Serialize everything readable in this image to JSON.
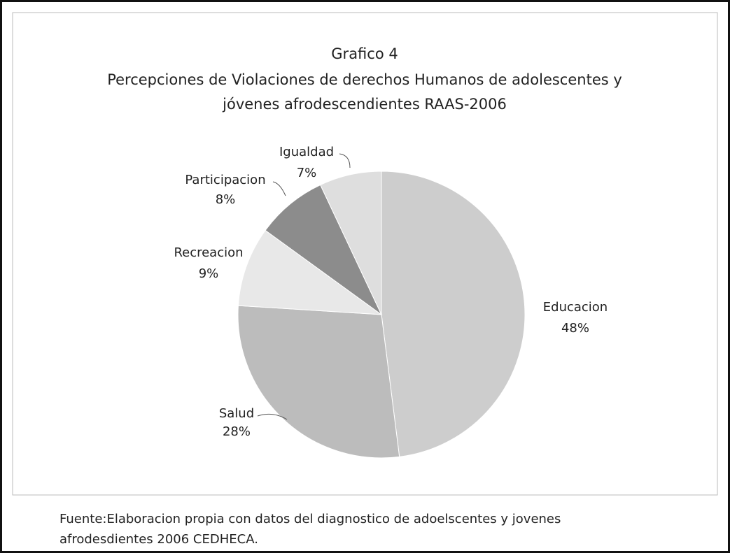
{
  "chart_data": {
    "type": "pie",
    "title": "Grafico 4",
    "subtitle": [
      "Percepciones de Violaciones de derechos Humanos  de adolescentes y",
      "jóvenes afrodescendientes  RAAS-2006"
    ],
    "categories": [
      "Educacion",
      "Salud",
      "Recreacion",
      "Participacion",
      "Igualdad"
    ],
    "values": [
      48,
      28,
      9,
      8,
      7
    ],
    "value_labels": [
      "48%",
      "28%",
      "9%",
      "8%",
      "7%"
    ],
    "colors": [
      "#cdcdcd",
      "#bcbcbc",
      "#e8e8e8",
      "#8c8c8c",
      "#dedede"
    ],
    "note": [
      "Fuente:Elaboracion propia con datos del diagnostico de adoelscentes y jovenes",
      "afrodesdientes 2006  CEDHECA."
    ]
  }
}
